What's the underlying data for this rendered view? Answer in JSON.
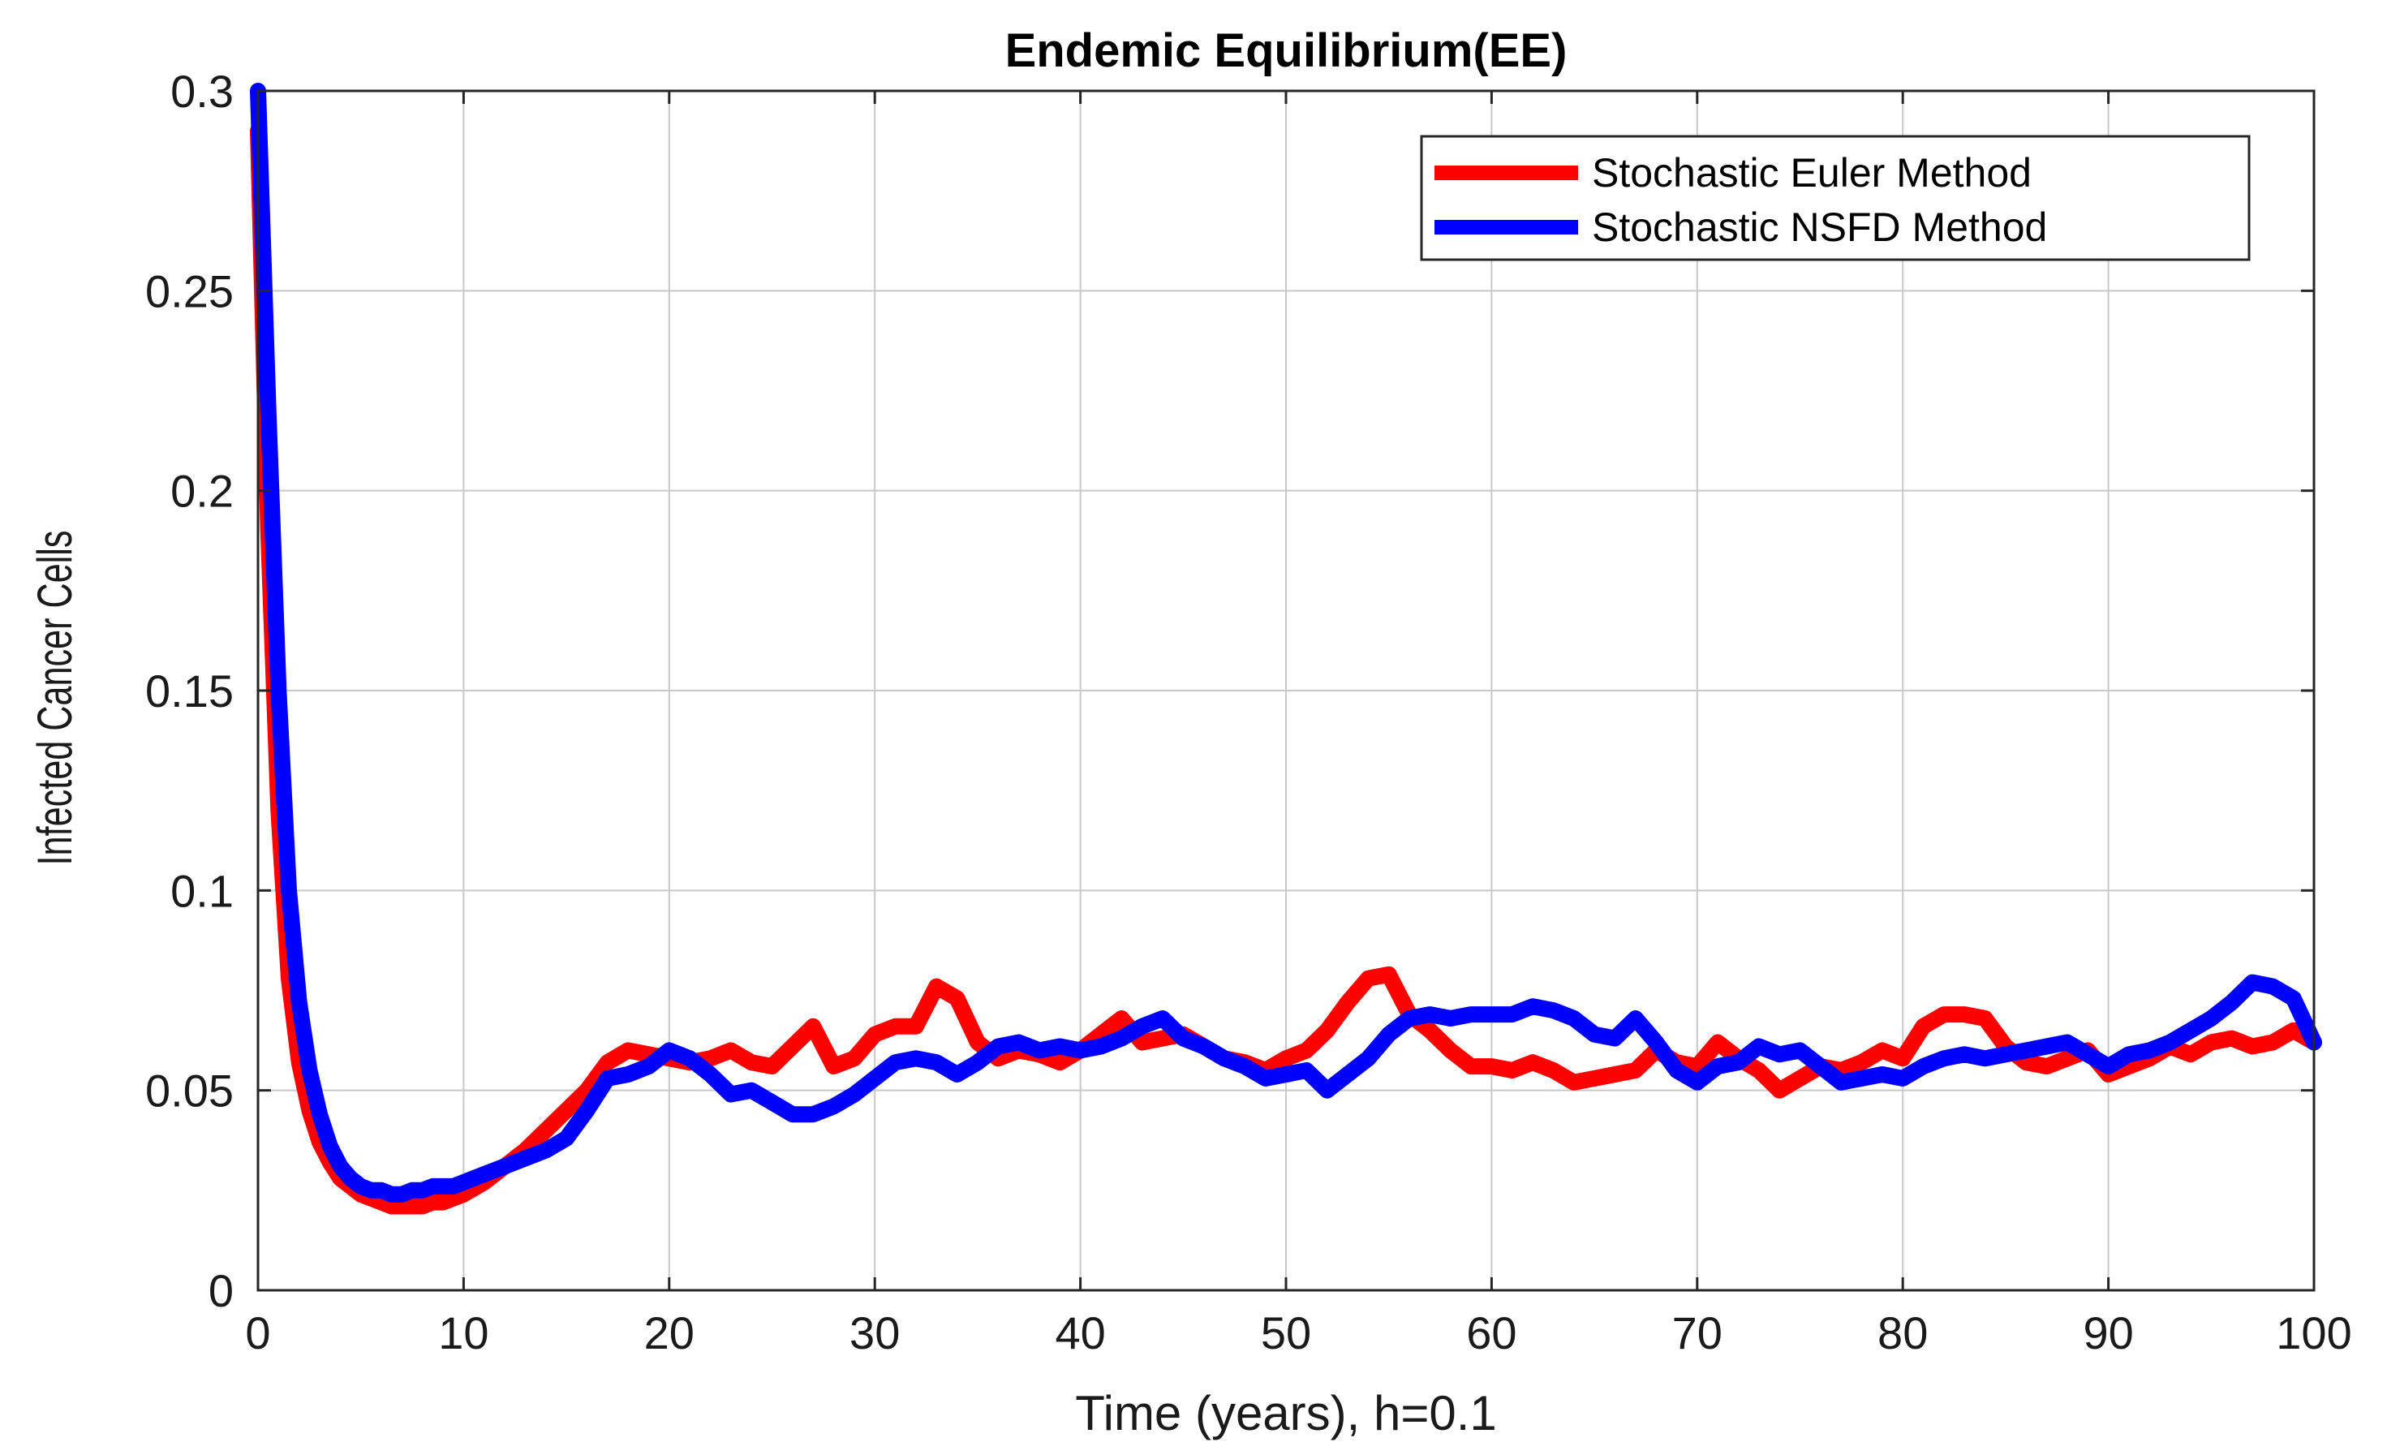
{
  "chart_data": {
    "type": "line",
    "title": "Endemic Equilibrium(EE)",
    "xlabel": "Time (years), h=0.1",
    "ylabel": "Infected Cancer Cells",
    "xlim": [
      0,
      100
    ],
    "ylim": [
      0,
      0.3
    ],
    "xticks": [
      0,
      10,
      20,
      30,
      40,
      50,
      60,
      70,
      80,
      90,
      100
    ],
    "xtick_labels": [
      "0",
      "10",
      "20",
      "30",
      "40",
      "50",
      "60",
      "70",
      "80",
      "90",
      "100"
    ],
    "yticks": [
      0,
      0.05,
      0.1,
      0.15,
      0.2,
      0.25,
      0.3
    ],
    "ytick_labels": [
      "0",
      "0.05",
      "0.1",
      "0.15",
      "0.2",
      "0.25",
      "0.3"
    ],
    "grid": true,
    "legend_position": "top-right",
    "series": [
      {
        "name": "Stochastic Euler Method",
        "color": "#ff0000",
        "x": [
          0,
          0.5,
          1,
          1.5,
          2,
          2.5,
          3,
          3.5,
          4,
          4.5,
          5,
          5.5,
          6,
          6.5,
          7,
          7.5,
          8,
          8.5,
          9,
          9.5,
          10,
          11,
          12,
          13,
          14,
          15,
          16,
          17,
          18,
          19,
          20,
          21,
          22,
          23,
          24,
          25,
          26,
          27,
          28,
          29,
          30,
          31,
          32,
          33,
          34,
          35,
          36,
          37,
          38,
          39,
          40,
          41,
          42,
          43,
          44,
          45,
          46,
          47,
          48,
          49,
          50,
          51,
          52,
          53,
          54,
          55,
          56,
          57,
          58,
          59,
          60,
          61,
          62,
          63,
          64,
          65,
          66,
          67,
          68,
          69,
          70,
          71,
          72,
          73,
          74,
          75,
          76,
          77,
          78,
          79,
          80,
          81,
          82,
          83,
          84,
          85,
          86,
          87,
          88,
          89,
          90,
          91,
          92,
          93,
          94,
          95,
          96,
          97,
          98,
          99,
          100
        ],
        "y": [
          0.29,
          0.19,
          0.12,
          0.078,
          0.057,
          0.045,
          0.037,
          0.032,
          0.028,
          0.026,
          0.024,
          0.023,
          0.022,
          0.021,
          0.021,
          0.021,
          0.021,
          0.022,
          0.022,
          0.023,
          0.024,
          0.027,
          0.031,
          0.035,
          0.04,
          0.045,
          0.05,
          0.057,
          0.06,
          0.059,
          0.058,
          0.057,
          0.058,
          0.06,
          0.057,
          0.056,
          0.061,
          0.066,
          0.056,
          0.058,
          0.064,
          0.066,
          0.066,
          0.076,
          0.073,
          0.062,
          0.058,
          0.06,
          0.059,
          0.057,
          0.06,
          0.064,
          0.068,
          0.062,
          0.063,
          0.064,
          0.061,
          0.058,
          0.057,
          0.055,
          0.058,
          0.06,
          0.065,
          0.072,
          0.078,
          0.079,
          0.069,
          0.065,
          0.06,
          0.056,
          0.056,
          0.055,
          0.057,
          0.055,
          0.052,
          0.053,
          0.054,
          0.055,
          0.06,
          0.057,
          0.056,
          0.062,
          0.058,
          0.055,
          0.05,
          0.053,
          0.056,
          0.055,
          0.057,
          0.06,
          0.058,
          0.066,
          0.069,
          0.069,
          0.068,
          0.061,
          0.057,
          0.056,
          0.058,
          0.06,
          0.054,
          0.056,
          0.058,
          0.061,
          0.059,
          0.062,
          0.063,
          0.061,
          0.062,
          0.065,
          0.062
        ]
      },
      {
        "name": "Stochastic NSFD Method",
        "color": "#0000ff",
        "x": [
          0,
          0.5,
          1,
          1.5,
          2,
          2.5,
          3,
          3.5,
          4,
          4.5,
          5,
          5.5,
          6,
          6.5,
          7,
          7.5,
          8,
          8.5,
          9,
          9.5,
          10,
          11,
          12,
          13,
          14,
          15,
          16,
          17,
          18,
          19,
          20,
          21,
          22,
          23,
          24,
          25,
          26,
          27,
          28,
          29,
          30,
          31,
          32,
          33,
          34,
          35,
          36,
          37,
          38,
          39,
          40,
          41,
          42,
          43,
          44,
          45,
          46,
          47,
          48,
          49,
          50,
          51,
          52,
          53,
          54,
          55,
          56,
          57,
          58,
          59,
          60,
          61,
          62,
          63,
          64,
          65,
          66,
          67,
          68,
          69,
          70,
          71,
          72,
          73,
          74,
          75,
          76,
          77,
          78,
          79,
          80,
          81,
          82,
          83,
          84,
          85,
          86,
          87,
          88,
          89,
          90,
          91,
          92,
          93,
          94,
          95,
          96,
          97,
          98,
          99,
          100
        ],
        "y": [
          0.3,
          0.22,
          0.15,
          0.1,
          0.072,
          0.055,
          0.044,
          0.036,
          0.031,
          0.028,
          0.026,
          0.025,
          0.025,
          0.024,
          0.024,
          0.025,
          0.025,
          0.026,
          0.026,
          0.026,
          0.027,
          0.029,
          0.031,
          0.033,
          0.035,
          0.038,
          0.045,
          0.053,
          0.054,
          0.056,
          0.06,
          0.058,
          0.054,
          0.049,
          0.05,
          0.047,
          0.044,
          0.044,
          0.046,
          0.049,
          0.053,
          0.057,
          0.058,
          0.057,
          0.054,
          0.057,
          0.061,
          0.062,
          0.06,
          0.061,
          0.06,
          0.061,
          0.063,
          0.066,
          0.068,
          0.063,
          0.061,
          0.058,
          0.056,
          0.053,
          0.054,
          0.055,
          0.05,
          0.054,
          0.058,
          0.064,
          0.068,
          0.069,
          0.068,
          0.069,
          0.069,
          0.069,
          0.071,
          0.07,
          0.068,
          0.064,
          0.063,
          0.068,
          0.062,
          0.055,
          0.052,
          0.056,
          0.057,
          0.061,
          0.059,
          0.06,
          0.056,
          0.052,
          0.053,
          0.054,
          0.053,
          0.056,
          0.058,
          0.059,
          0.058,
          0.059,
          0.06,
          0.061,
          0.062,
          0.059,
          0.056,
          0.059,
          0.06,
          0.062,
          0.065,
          0.068,
          0.072,
          0.077,
          0.076,
          0.073,
          0.062
        ]
      }
    ]
  }
}
